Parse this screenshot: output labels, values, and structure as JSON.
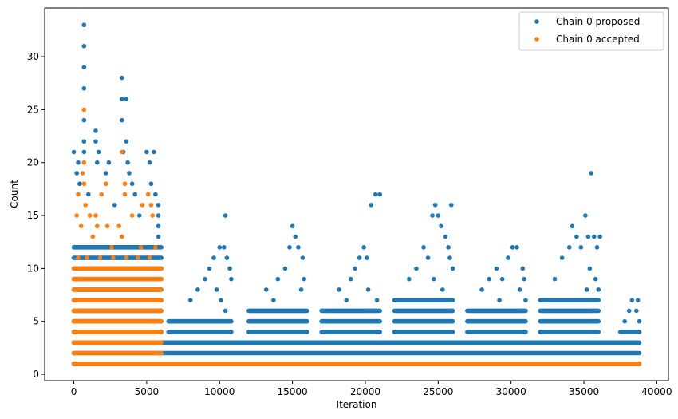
{
  "chart_data": {
    "type": "scatter",
    "xlabel": "Iteration",
    "ylabel": "Count",
    "xlim": [
      -2000,
      40800
    ],
    "ylim": [
      -0.6,
      34.6
    ],
    "xticks": [
      0,
      5000,
      10000,
      15000,
      20000,
      25000,
      30000,
      35000,
      40000
    ],
    "yticks": [
      0,
      5,
      10,
      15,
      20,
      25,
      30
    ],
    "grid": false,
    "legend_position": "top-right",
    "series": [
      {
        "name": "Chain 0 proposed",
        "color": "#1f77b4",
        "marker": "circle",
        "bands": [
          {
            "x_start": 0,
            "x_end": 6000,
            "y_min": 1,
            "y_max": 12
          },
          {
            "x_start": 6000,
            "x_end": 38800,
            "y_min": 1,
            "y_max": 3
          },
          {
            "x_start": 6500,
            "x_end": 10800,
            "y_min": 4,
            "y_max": 5
          },
          {
            "x_start": 12000,
            "x_end": 16000,
            "y_min": 4,
            "y_max": 6
          },
          {
            "x_start": 17000,
            "x_end": 21000,
            "y_min": 4,
            "y_max": 6
          },
          {
            "x_start": 22000,
            "x_end": 26000,
            "y_min": 4,
            "y_max": 7
          },
          {
            "x_start": 27000,
            "x_end": 31000,
            "y_min": 4,
            "y_max": 6
          },
          {
            "x_start": 32000,
            "x_end": 36000,
            "y_min": 4,
            "y_max": 7
          },
          {
            "x_start": 37500,
            "x_end": 38800,
            "y_min": 4,
            "y_max": 4
          }
        ],
        "points": [
          [
            700,
            33
          ],
          [
            700,
            31
          ],
          [
            700,
            29
          ],
          [
            700,
            27
          ],
          [
            700,
            24
          ],
          [
            700,
            22
          ],
          [
            700,
            21
          ],
          [
            0,
            21
          ],
          [
            200,
            19
          ],
          [
            300,
            20
          ],
          [
            400,
            18
          ],
          [
            1500,
            23
          ],
          [
            1500,
            22
          ],
          [
            1700,
            21
          ],
          [
            1600,
            20
          ],
          [
            2200,
            19
          ],
          [
            2400,
            20
          ],
          [
            3300,
            28
          ],
          [
            3300,
            26
          ],
          [
            3300,
            24
          ],
          [
            3600,
            26
          ],
          [
            3600,
            22
          ],
          [
            3400,
            21
          ],
          [
            3700,
            20
          ],
          [
            3800,
            19
          ],
          [
            4000,
            18
          ],
          [
            4200,
            17
          ],
          [
            5000,
            21
          ],
          [
            5200,
            20
          ],
          [
            5500,
            21
          ],
          [
            5300,
            18
          ],
          [
            5600,
            17
          ],
          [
            5800,
            16
          ],
          [
            5800,
            15
          ],
          [
            5800,
            14
          ],
          [
            5800,
            13
          ],
          [
            1000,
            17
          ],
          [
            2800,
            16
          ],
          [
            4500,
            15
          ],
          [
            9000,
            9
          ],
          [
            9300,
            10
          ],
          [
            9600,
            11
          ],
          [
            9800,
            8
          ],
          [
            10000,
            12
          ],
          [
            10300,
            12
          ],
          [
            10400,
            15
          ],
          [
            10500,
            11
          ],
          [
            10700,
            10
          ],
          [
            10800,
            9
          ],
          [
            10100,
            7
          ],
          [
            10400,
            6
          ],
          [
            8000,
            7
          ],
          [
            8500,
            8
          ],
          [
            14000,
            9
          ],
          [
            14500,
            10
          ],
          [
            14800,
            12
          ],
          [
            15000,
            14
          ],
          [
            15200,
            13
          ],
          [
            15400,
            12
          ],
          [
            15700,
            11
          ],
          [
            15800,
            9
          ],
          [
            15600,
            8
          ],
          [
            13200,
            8
          ],
          [
            13700,
            7
          ],
          [
            19000,
            9
          ],
          [
            19300,
            10
          ],
          [
            19600,
            11
          ],
          [
            19900,
            12
          ],
          [
            20100,
            11
          ],
          [
            20400,
            16
          ],
          [
            20700,
            17
          ],
          [
            21000,
            17
          ],
          [
            20200,
            8
          ],
          [
            20800,
            7
          ],
          [
            18200,
            8
          ],
          [
            18700,
            7
          ],
          [
            23000,
            9
          ],
          [
            23500,
            10
          ],
          [
            24000,
            12
          ],
          [
            24300,
            11
          ],
          [
            24600,
            15
          ],
          [
            24800,
            16
          ],
          [
            25000,
            15
          ],
          [
            25200,
            14
          ],
          [
            25500,
            13
          ],
          [
            25700,
            12
          ],
          [
            25900,
            16
          ],
          [
            25800,
            11
          ],
          [
            24700,
            9
          ],
          [
            25300,
            8
          ],
          [
            26000,
            10
          ],
          [
            28000,
            8
          ],
          [
            28500,
            9
          ],
          [
            29000,
            10
          ],
          [
            29400,
            9
          ],
          [
            29800,
            11
          ],
          [
            30100,
            12
          ],
          [
            30400,
            12
          ],
          [
            30800,
            10
          ],
          [
            30900,
            9
          ],
          [
            29200,
            7
          ],
          [
            30600,
            8
          ],
          [
            31000,
            7
          ],
          [
            33000,
            9
          ],
          [
            33500,
            11
          ],
          [
            34000,
            12
          ],
          [
            34200,
            14
          ],
          [
            34500,
            13
          ],
          [
            34800,
            12
          ],
          [
            35100,
            15
          ],
          [
            35300,
            13
          ],
          [
            35500,
            19
          ],
          [
            35700,
            13
          ],
          [
            35900,
            12
          ],
          [
            36100,
            13
          ],
          [
            35400,
            10
          ],
          [
            35800,
            9
          ],
          [
            35200,
            8
          ],
          [
            36000,
            8
          ],
          [
            37800,
            5
          ],
          [
            38100,
            6
          ],
          [
            38300,
            7
          ],
          [
            38600,
            6
          ],
          [
            38700,
            7
          ],
          [
            38800,
            5
          ]
        ]
      },
      {
        "name": "Chain 0 accepted",
        "color": "#ff7f0e",
        "marker": "circle",
        "bands": [
          {
            "x_start": 0,
            "x_end": 6000,
            "y_min": 1,
            "y_max": 10
          },
          {
            "x_start": 6000,
            "x_end": 38800,
            "y_min": 1,
            "y_max": 1
          }
        ],
        "points": [
          [
            700,
            25
          ],
          [
            700,
            20
          ],
          [
            600,
            19
          ],
          [
            700,
            18
          ],
          [
            300,
            17
          ],
          [
            800,
            16
          ],
          [
            1100,
            15
          ],
          [
            500,
            14
          ],
          [
            1500,
            15
          ],
          [
            1600,
            14
          ],
          [
            2200,
            18
          ],
          [
            1900,
            17
          ],
          [
            2300,
            14
          ],
          [
            3300,
            21
          ],
          [
            3500,
            18
          ],
          [
            3500,
            17
          ],
          [
            3100,
            14
          ],
          [
            3300,
            13
          ],
          [
            4000,
            15
          ],
          [
            4700,
            16
          ],
          [
            5100,
            17
          ],
          [
            5300,
            16
          ],
          [
            5400,
            15
          ],
          [
            200,
            15
          ],
          [
            1300,
            13
          ],
          [
            2600,
            12
          ],
          [
            4600,
            12
          ],
          [
            5600,
            12
          ],
          [
            300,
            11
          ],
          [
            900,
            11
          ],
          [
            1800,
            11
          ],
          [
            2700,
            11
          ],
          [
            3600,
            11
          ],
          [
            4400,
            11
          ],
          [
            5200,
            11
          ]
        ]
      }
    ]
  }
}
